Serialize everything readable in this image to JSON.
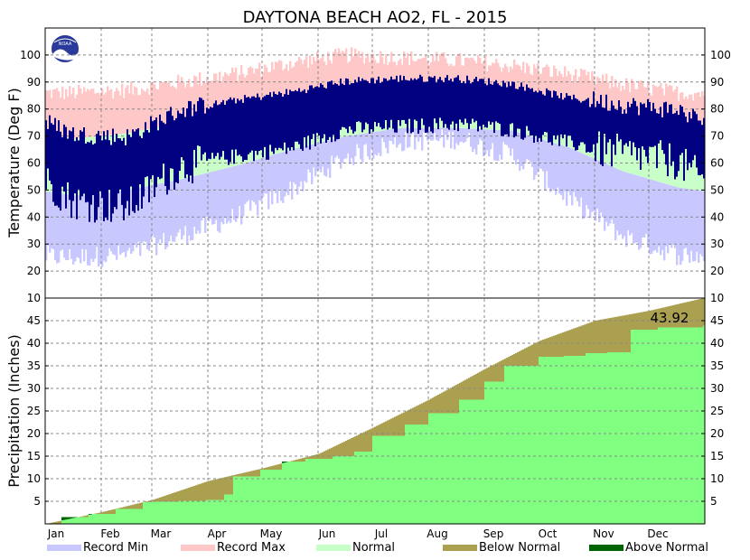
{
  "chart_data": [
    {
      "type": "bar",
      "panel": "temperature",
      "title": "DAYTONA BEACH AO2, FL - 2015",
      "ylabel": "Temperature (Deg F)",
      "ylim": [
        10,
        110
      ],
      "yticks": [
        20,
        30,
        40,
        50,
        60,
        70,
        80,
        90,
        100
      ],
      "logo_text": "NOAA",
      "months": [
        "Jan",
        "Feb",
        "Mar",
        "Apr",
        "May",
        "Jun",
        "Jul",
        "Aug",
        "Sep",
        "Oct",
        "Nov",
        "Dec"
      ],
      "month_start_day": [
        1,
        32,
        60,
        91,
        121,
        152,
        182,
        213,
        244,
        274,
        305,
        335
      ],
      "days_in_year": 365,
      "normal_monthly": [
        {
          "month": "Jan",
          "low": 48,
          "high": 69
        },
        {
          "month": "Feb",
          "low": 50,
          "high": 71
        },
        {
          "month": "Mar",
          "low": 54,
          "high": 75
        },
        {
          "month": "Apr",
          "low": 59,
          "high": 80
        },
        {
          "month": "May",
          "low": 65,
          "high": 85
        },
        {
          "month": "Jun",
          "low": 70,
          "high": 88
        },
        {
          "month": "Jul",
          "low": 73,
          "high": 90
        },
        {
          "month": "Aug",
          "low": 73,
          "high": 90
        },
        {
          "month": "Sep",
          "low": 72,
          "high": 87
        },
        {
          "month": "Oct",
          "low": 66,
          "high": 82
        },
        {
          "month": "Nov",
          "low": 57,
          "high": 76
        },
        {
          "month": "Dec",
          "low": 51,
          "high": 71
        }
      ],
      "record_monthly": [
        {
          "month": "Jan",
          "min": 25,
          "max": 86
        },
        {
          "month": "Feb",
          "min": 26,
          "max": 87
        },
        {
          "month": "Mar",
          "min": 33,
          "max": 90
        },
        {
          "month": "Apr",
          "min": 40,
          "max": 93
        },
        {
          "month": "May",
          "min": 50,
          "max": 97
        },
        {
          "month": "Jun",
          "min": 62,
          "max": 100
        },
        {
          "month": "Jul",
          "min": 68,
          "max": 99
        },
        {
          "month": "Aug",
          "min": 69,
          "max": 98
        },
        {
          "month": "Sep",
          "min": 63,
          "max": 96
        },
        {
          "month": "Oct",
          "min": 47,
          "max": 93
        },
        {
          "month": "Nov",
          "min": 33,
          "max": 89
        },
        {
          "month": "Dec",
          "min": 26,
          "max": 86
        }
      ],
      "actual_monthly": [
        {
          "month": "Jan",
          "low": 47,
          "high": 70
        },
        {
          "month": "Feb",
          "low": 45,
          "high": 69
        },
        {
          "month": "Mar",
          "low": 60,
          "high": 79
        },
        {
          "month": "Apr",
          "low": 63,
          "high": 83
        },
        {
          "month": "May",
          "low": 66,
          "high": 86
        },
        {
          "month": "Jun",
          "low": 73,
          "high": 90
        },
        {
          "month": "Jul",
          "low": 74,
          "high": 91
        },
        {
          "month": "Aug",
          "low": 75,
          "high": 91
        },
        {
          "month": "Sep",
          "low": 73,
          "high": 89
        },
        {
          "month": "Oct",
          "low": 68,
          "high": 84
        },
        {
          "month": "Nov",
          "low": 65,
          "high": 81
        },
        {
          "month": "Dec",
          "low": 62,
          "high": 79
        }
      ]
    },
    {
      "type": "area",
      "panel": "precipitation",
      "ylabel": "Precipitation (Inches)",
      "ylim": [
        0,
        50
      ],
      "yticks": [
        5,
        10,
        15,
        20,
        25,
        30,
        35,
        40,
        45
      ],
      "xlabels": [
        "Jan",
        "Feb",
        "Mar",
        "Apr",
        "May",
        "Jun",
        "Jul",
        "Aug",
        "Sep",
        "Oct",
        "Nov",
        "Dec"
      ],
      "annotation": "43.92",
      "normal_cumulative": [
        {
          "day": 1,
          "value": 0
        },
        {
          "day": 32,
          "value": 2.6
        },
        {
          "day": 60,
          "value": 5.3
        },
        {
          "day": 91,
          "value": 9.5
        },
        {
          "day": 121,
          "value": 12.3
        },
        {
          "day": 152,
          "value": 15.5
        },
        {
          "day": 182,
          "value": 21.3
        },
        {
          "day": 213,
          "value": 27.5
        },
        {
          "day": 244,
          "value": 34.3
        },
        {
          "day": 274,
          "value": 40.5
        },
        {
          "day": 305,
          "value": 45.0
        },
        {
          "day": 335,
          "value": 47.2
        },
        {
          "day": 365,
          "value": 50.0
        }
      ],
      "actual_cumulative": [
        {
          "day": 1,
          "value": 0
        },
        {
          "day": 10,
          "value": 1.5
        },
        {
          "day": 25,
          "value": 2.2
        },
        {
          "day": 40,
          "value": 3.3
        },
        {
          "day": 55,
          "value": 4.8
        },
        {
          "day": 60,
          "value": 4.9
        },
        {
          "day": 75,
          "value": 5.1
        },
        {
          "day": 90,
          "value": 5.3
        },
        {
          "day": 100,
          "value": 6.5
        },
        {
          "day": 105,
          "value": 10.5
        },
        {
          "day": 120,
          "value": 12.0
        },
        {
          "day": 132,
          "value": 13.8
        },
        {
          "day": 145,
          "value": 14.4
        },
        {
          "day": 160,
          "value": 15.0
        },
        {
          "day": 172,
          "value": 16.0
        },
        {
          "day": 182,
          "value": 19.5
        },
        {
          "day": 200,
          "value": 22.0
        },
        {
          "day": 213,
          "value": 24.5
        },
        {
          "day": 230,
          "value": 27.5
        },
        {
          "day": 244,
          "value": 31.5
        },
        {
          "day": 255,
          "value": 35.0
        },
        {
          "day": 274,
          "value": 37.0
        },
        {
          "day": 288,
          "value": 37.2
        },
        {
          "day": 300,
          "value": 37.8
        },
        {
          "day": 312,
          "value": 38.0
        },
        {
          "day": 325,
          "value": 43.0
        },
        {
          "day": 340,
          "value": 43.5
        },
        {
          "day": 365,
          "value": 43.92
        }
      ]
    }
  ],
  "legend": [
    {
      "label": "Record Min",
      "color": "#c8c8ff"
    },
    {
      "label": "Record Max",
      "color": "#ffc8c8"
    },
    {
      "label": "Normal",
      "color": "#c8ffc8"
    },
    {
      "label": "Below Normal",
      "color": "#aaa050"
    },
    {
      "label": "Above Normal",
      "color": "#006400"
    }
  ],
  "colors": {
    "record_min": "#c8c8ff",
    "record_max": "#ffc8c8",
    "normal": "#c8ffc8",
    "actual": "#000080",
    "precip_actual": "#80ff80",
    "below_normal": "#aaa050",
    "above_normal": "#006400"
  }
}
